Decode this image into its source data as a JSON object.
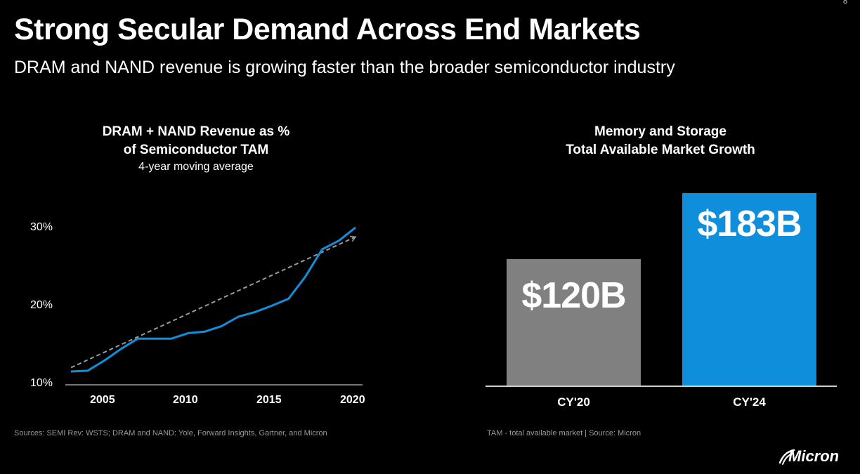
{
  "page_number": "8",
  "title": "Strong Secular Demand Across End Markets",
  "subtitle": "DRAM and NAND revenue is growing faster than the broader semiconductor industry",
  "logo_text": "Micron",
  "colors": {
    "accent": "#0f8fdb",
    "gray": "#808080",
    "trend": "#9a9a9a"
  },
  "chart_data": [
    {
      "type": "line",
      "title_line1": "DRAM + NAND Revenue as %",
      "title_line2": "of Semiconductor TAM",
      "subtitle": "4-year moving average",
      "x_ticks": [
        "2005",
        "2010",
        "2015",
        "2020"
      ],
      "y_ticks": [
        "10%",
        "20%",
        "30%"
      ],
      "xlim": [
        2003,
        2020
      ],
      "ylim": [
        10,
        30
      ],
      "series": [
        {
          "x": [
            2003,
            2004,
            2005,
            2006,
            2007,
            2008,
            2009,
            2010,
            2011,
            2012,
            2013,
            2014,
            2015,
            2016,
            2017,
            2018,
            2019,
            2020
          ],
          "y": [
            11.7,
            11.8,
            13.1,
            14.6,
            15.9,
            15.9,
            15.9,
            16.6,
            16.8,
            17.5,
            18.7,
            19.3,
            20.1,
            21.0,
            23.8,
            27.3,
            28.4,
            30.1
          ]
        }
      ],
      "trend": {
        "x": [
          2003,
          2020
        ],
        "y": [
          12.2,
          28.9
        ],
        "style": "dashed arrow"
      },
      "grid": false,
      "source": "Sources: SEMI Rev: WSTS; DRAM and NAND: Yole, Forward Insights, Gartner, and Micron"
    },
    {
      "type": "bar",
      "title_line1": "Memory and Storage",
      "title_line2": "Total Available Market Growth",
      "categories": [
        "CY'20",
        "CY'24"
      ],
      "values": [
        120,
        183
      ],
      "value_labels": [
        "$120B",
        "$183B"
      ],
      "unit": "$B",
      "bar_colors": [
        "#808080",
        "#0f8fdb"
      ],
      "source": "TAM - total available market | Source: Micron"
    }
  ]
}
